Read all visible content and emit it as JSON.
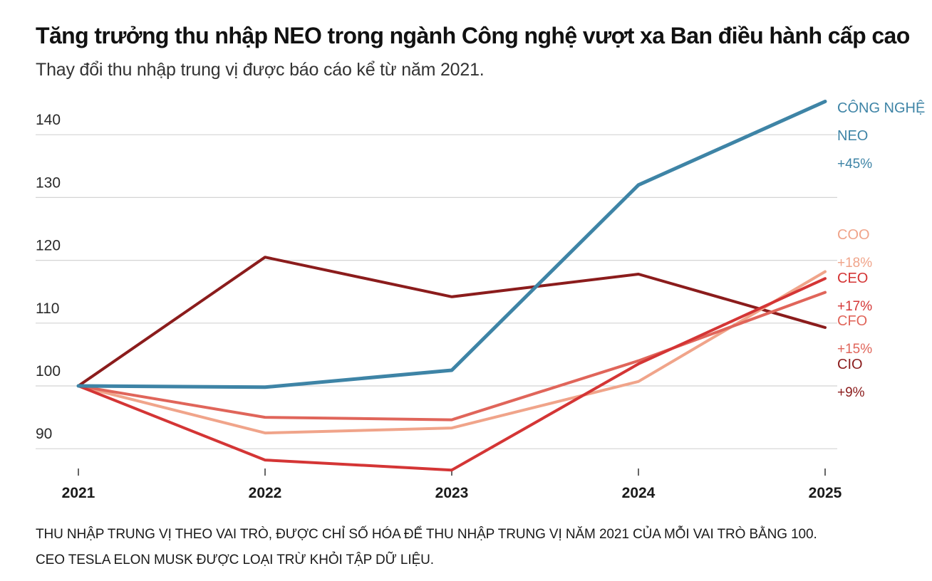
{
  "title": "Tăng trưởng thu nhập NEO trong ngành Công nghệ vượt xa Ban điều hành cấp cao",
  "subtitle": "Thay đổi thu nhập trung vị được báo cáo kể từ năm 2021.",
  "footnote": [
    "THU NHẬP TRUNG VỊ THEO VAI TRÒ, ĐƯỢC CHỈ SỐ HÓA ĐỂ THU NHẬP TRUNG VỊ NĂM 2021 CỦA MỖI VAI TRÒ BẰNG 100.",
    "CEO TESLA ELON MUSK ĐƯỢC LOẠI TRỪ KHỎI TẬP DỮ LIỆU."
  ],
  "chart_data": {
    "type": "line",
    "categories": [
      "2021",
      "2022",
      "2023",
      "2024",
      "2025"
    ],
    "y_ticks": [
      90,
      100,
      110,
      120,
      130,
      140
    ],
    "ylim": [
      86,
      146
    ],
    "grid": true,
    "legend": "direct labels at right end",
    "series": [
      {
        "name": "CÔNG NGHỆ NEO",
        "label_lines": [
          "CÔNG NGHỆ",
          "NEO"
        ],
        "change": "+45%",
        "color": "#3e84a6",
        "values": [
          100,
          99.8,
          102.5,
          132,
          145.3
        ]
      },
      {
        "name": "COO",
        "label_lines": [
          "COO"
        ],
        "change": "+18%",
        "color": "#f0a48a",
        "values": [
          100,
          92.5,
          93.3,
          100.7,
          118.2
        ]
      },
      {
        "name": "CEO",
        "label_lines": [
          "CEO"
        ],
        "change": "+17%",
        "color": "#d43535",
        "values": [
          100,
          88.2,
          86.6,
          103.5,
          117.1
        ]
      },
      {
        "name": "CFO",
        "label_lines": [
          "CFO"
        ],
        "change": "+15%",
        "color": "#e0655a",
        "values": [
          100,
          95.0,
          94.6,
          104.0,
          114.9
        ]
      },
      {
        "name": "CIO",
        "label_lines": [
          "CIO"
        ],
        "change": "+9%",
        "color": "#8b1c1c",
        "values": [
          100,
          120.5,
          114.2,
          117.8,
          109.3
        ]
      }
    ]
  }
}
